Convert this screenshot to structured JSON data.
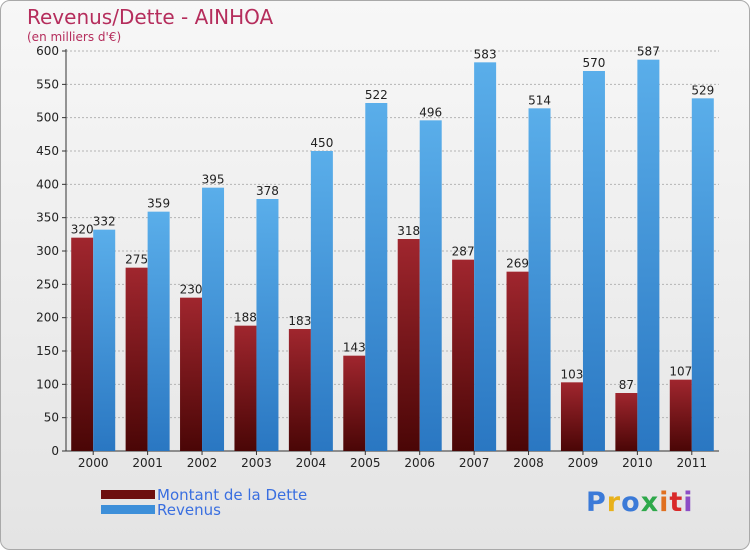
{
  "title": "Revenus/Dette - AINHOA",
  "subtitle": "(en milliers d'€)",
  "logo": {
    "text": "Proxiti",
    "letter_colors": [
      "#3b7ad8",
      "#e8b11b",
      "#3b7ad8",
      "#2ea84a",
      "#e07020",
      "#d92a2a",
      "#8c4ec6"
    ]
  },
  "colors": {
    "debt": "#6d0f0f",
    "revenue": "#3d8fd9"
  },
  "chart_data": {
    "type": "bar",
    "title": "Revenus/Dette - AINHOA",
    "subtitle": "(en milliers d'€)",
    "xlabel": "",
    "ylabel": "",
    "categories": [
      "2000",
      "2001",
      "2002",
      "2003",
      "2004",
      "2005",
      "2006",
      "2007",
      "2008",
      "2009",
      "2010",
      "2011"
    ],
    "series": [
      {
        "name": "Montant de la Dette",
        "values": [
          320,
          275,
          230,
          188,
          183,
          143,
          318,
          287,
          269,
          103,
          87,
          107
        ]
      },
      {
        "name": "Revenus",
        "values": [
          332,
          359,
          395,
          378,
          450,
          522,
          496,
          583,
          514,
          570,
          587,
          529
        ]
      }
    ],
    "ylim": [
      0,
      600
    ],
    "yticks": [
      0,
      50,
      100,
      150,
      200,
      250,
      300,
      350,
      400,
      450,
      500,
      550,
      600
    ],
    "grid": true,
    "legend": "bottom-left"
  }
}
